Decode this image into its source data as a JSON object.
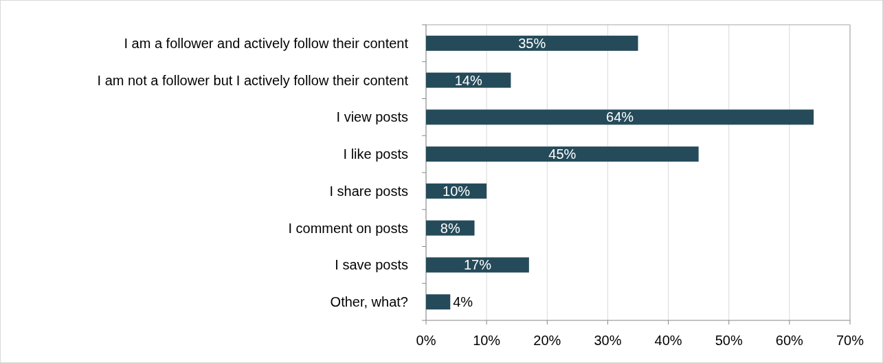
{
  "chart_data": {
    "type": "bar",
    "orientation": "horizontal",
    "categories": [
      "I am a follower and actively follow their content",
      "I am not a follower but I actively follow their content",
      "I view posts",
      "I like posts",
      "I share posts",
      "I comment on posts",
      "I save posts",
      "Other, what?"
    ],
    "values": [
      35,
      14,
      64,
      45,
      10,
      8,
      17,
      4
    ],
    "value_labels": [
      "35%",
      "14%",
      "64%",
      "45%",
      "10%",
      "8%",
      "17%",
      "4%"
    ],
    "color": "#254b5a",
    "xlim": [
      0,
      70
    ],
    "xticks": [
      {
        "value": 0,
        "label": "0%"
      },
      {
        "value": 10,
        "label": "10%"
      },
      {
        "value": 20,
        "label": "20%"
      },
      {
        "value": 30,
        "label": "30%"
      },
      {
        "value": 40,
        "label": "40%"
      },
      {
        "value": 50,
        "label": "50%"
      },
      {
        "value": 60,
        "label": "60%"
      },
      {
        "value": 70,
        "label": "70%"
      }
    ],
    "grid": "x"
  }
}
